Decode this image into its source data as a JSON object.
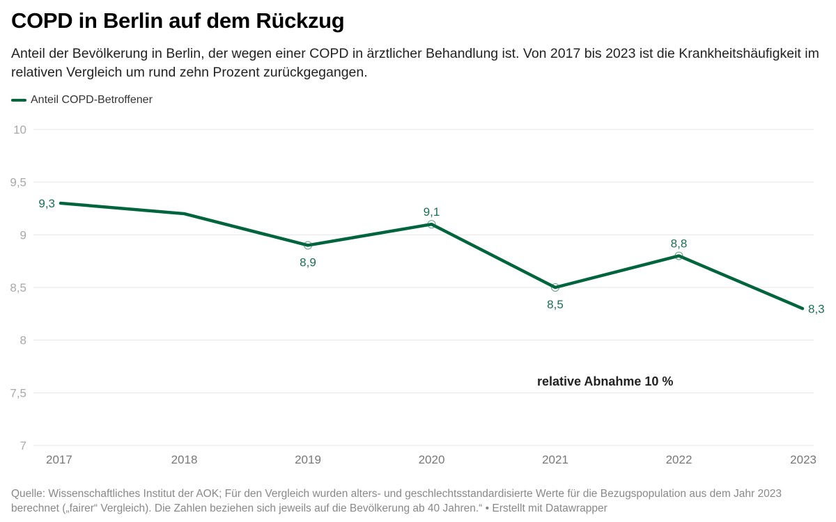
{
  "header": {
    "title": "COPD in Berlin auf dem Rückzug",
    "subtitle": "Anteil der Bevölkerung in Berlin, der wegen einer COPD in ärztlicher Behandlung ist. Von 2017 bis 2023 ist die Krankheitshäufigkeit im relativen Vergleich um rund zehn Prozent zurückgegangen."
  },
  "footer": {
    "text": "Quelle: Wissenschaftliches Institut der AOK; Für den Vergleich wurden alters- und geschlechtsstandardisierte Werte für die Bezugspopulation aus dem Jahr 2023 berechnet („fairer“ Vergleich). Die Zahlen beziehen sich jeweils auf die Bevölkerung ab 40 Jahren.“ • Erstellt mit Datawrapper"
  },
  "colors": {
    "series": "#00653d",
    "label": "#1a7050",
    "grid": "#e6e6e6",
    "tick": "#a8a8a8",
    "xtick": "#777777"
  },
  "chart_data": {
    "type": "line",
    "title": "COPD in Berlin auf dem Rückzug",
    "xlabel": "",
    "ylabel": "",
    "x": [
      "2017",
      "2018",
      "2019",
      "2020",
      "2021",
      "2022",
      "2023"
    ],
    "series": [
      {
        "name": "Anteil COPD-Betroffener",
        "values": [
          9.3,
          9.2,
          8.9,
          9.1,
          8.5,
          8.8,
          8.3
        ],
        "labels": [
          "9,3",
          null,
          "8,9",
          "9,1",
          "8,5",
          "8,8",
          "8,3"
        ],
        "label_positions": [
          "left",
          null,
          "below",
          "above",
          "below",
          "above",
          "right"
        ]
      }
    ],
    "ylim": [
      7,
      10
    ],
    "yticks": [
      10,
      9.5,
      9,
      8.5,
      8,
      7.5,
      7
    ],
    "ytick_labels": [
      "10",
      "9,5",
      "9",
      "8,5",
      "8",
      "7,5",
      "7"
    ],
    "grid": true,
    "legend": "top-left",
    "annotations": [
      {
        "text": "relative Abnahme 10 %",
        "x": "2020.85",
        "y": 7.8
      }
    ]
  }
}
